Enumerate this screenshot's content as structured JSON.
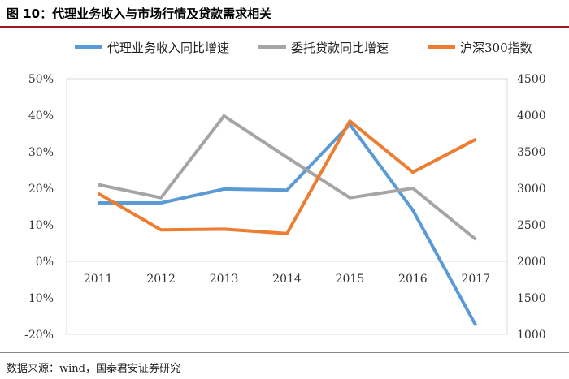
{
  "figure": {
    "title": "图 10：代理业务收入与市场行情及贷款需求相关",
    "source": "数据来源：wind，国泰君安证券研究"
  },
  "chart_data": {
    "type": "line",
    "categories": [
      "2011",
      "2012",
      "2013",
      "2014",
      "2015",
      "2016",
      "2017"
    ],
    "y_left": {
      "ticks": [
        "50%",
        "40%",
        "30%",
        "20%",
        "10%",
        "0%",
        "-10%",
        "-20%"
      ],
      "min": -20,
      "max": 50
    },
    "y_right": {
      "ticks": [
        "4500",
        "4000",
        "3500",
        "3000",
        "2500",
        "2000",
        "1500",
        "1000"
      ],
      "min": 1000,
      "max": 4500
    },
    "series": [
      {
        "name": "代理业务收入同比增速",
        "axis": "left",
        "color": "#5b9bd5",
        "values": [
          16,
          16,
          19.8,
          19.5,
          37.5,
          14,
          -17.5
        ]
      },
      {
        "name": "委托贷款同比增速",
        "axis": "left",
        "color": "#a5a5a5",
        "values": [
          21,
          17.4,
          39.8,
          28.5,
          17.4,
          20,
          6
        ]
      },
      {
        "name": "沪深300指数",
        "axis": "right",
        "color": "#ed7d31",
        "values": [
          2930,
          2430,
          2440,
          2380,
          3920,
          3220,
          3670
        ]
      }
    ]
  }
}
